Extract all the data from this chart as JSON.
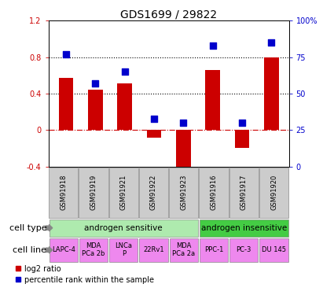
{
  "title": "GDS1699 / 29822",
  "samples": [
    "GSM91918",
    "GSM91919",
    "GSM91921",
    "GSM91922",
    "GSM91923",
    "GSM91916",
    "GSM91917",
    "GSM91920"
  ],
  "log2_ratio": [
    0.57,
    0.44,
    0.51,
    -0.08,
    -0.44,
    0.66,
    -0.19,
    0.8
  ],
  "percentile_rank": [
    77,
    57,
    65,
    33,
    30,
    83,
    30,
    85
  ],
  "ylim_left": [
    -0.4,
    1.2
  ],
  "ylim_right": [
    0,
    100
  ],
  "yticks_left": [
    -0.4,
    0,
    0.4,
    0.8,
    1.2
  ],
  "yticks_right": [
    0,
    25,
    50,
    75,
    100
  ],
  "ytick_labels_left": [
    "-0.4",
    "0",
    "0.4",
    "0.8",
    "1.2"
  ],
  "ytick_labels_right": [
    "0",
    "25",
    "50",
    "75",
    "100%"
  ],
  "hlines": [
    0.4,
    0.8
  ],
  "zero_line": 0.0,
  "bar_color": "#cc0000",
  "dot_color": "#0000cc",
  "bar_width": 0.5,
  "dot_size": 40,
  "cell_type_groups": [
    {
      "label": "androgen sensitive",
      "start": 0,
      "end": 4,
      "color": "#aeeaae"
    },
    {
      "label": "androgen insensitive",
      "start": 5,
      "end": 7,
      "color": "#44cc44"
    }
  ],
  "cell_lines": [
    "LAPC-4",
    "MDA\nPCa 2b",
    "LNCa\nP",
    "22Rv1",
    "MDA\nPCa 2a",
    "PPC-1",
    "PC-3",
    "DU 145"
  ],
  "cell_line_color": "#ee88ee",
  "gsm_box_color": "#cccccc",
  "label_cell_type": "cell type",
  "label_cell_line": "cell line",
  "legend_red": "log2 ratio",
  "legend_blue": "percentile rank within the sample",
  "title_fontsize": 10,
  "tick_fontsize": 7,
  "label_fontsize": 8,
  "gsm_fontsize": 6,
  "cell_line_fontsize": 6,
  "cell_type_fontsize": 7.5
}
